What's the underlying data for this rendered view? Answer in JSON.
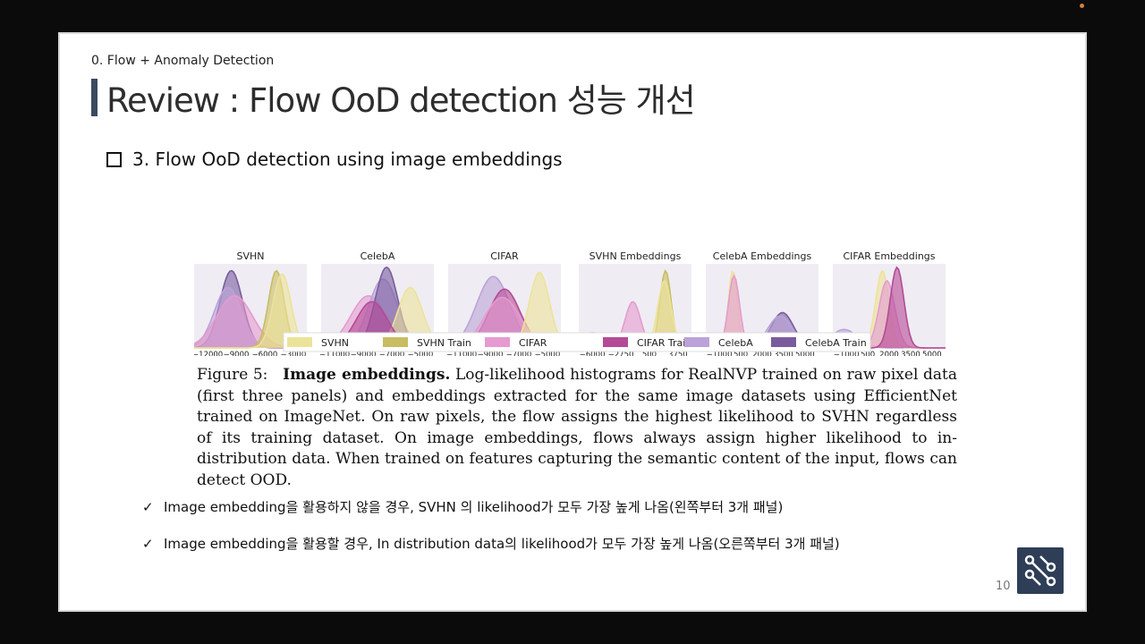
{
  "slide": {
    "section": "0. Flow + Anomaly Detection",
    "title": "Review : Flow OoD detection 성능 개선",
    "subheading": "3. Flow OoD detection using image embeddings",
    "page_number": "10"
  },
  "figure": {
    "panels": [
      {
        "title": "SVHN",
        "ticks": [
          "−12000",
          "−9000",
          "−6000",
          "−3000"
        ]
      },
      {
        "title": "CelebA",
        "ticks": [
          "−11000",
          "−9000",
          "−7000",
          "−5000"
        ]
      },
      {
        "title": "CIFAR",
        "ticks": [
          "−11000",
          "−9000",
          "−7000",
          "−5000"
        ]
      },
      {
        "title": "SVHN Embeddings",
        "ticks": [
          "−6000",
          "−2750",
          "500",
          "3750"
        ]
      },
      {
        "title": "CelebA Embeddings",
        "ticks": [
          "−1000",
          "500",
          "2000",
          "3500",
          "5000"
        ]
      },
      {
        "title": "CIFAR Embeddings",
        "ticks": [
          "−1000",
          "500",
          "2000",
          "3500",
          "5000"
        ]
      }
    ],
    "legend": [
      {
        "label": "SVHN",
        "color": "#ece39a"
      },
      {
        "label": "SVHN Train",
        "color": "#c9bd63"
      },
      {
        "label": "CIFAR",
        "color": "#e59bcf"
      },
      {
        "label": "CIFAR Train",
        "color": "#b54a96"
      },
      {
        "label": "CelebA",
        "color": "#bba3d9"
      },
      {
        "label": "CelebA Train",
        "color": "#7a5c9e"
      }
    ],
    "caption_label": "Figure 5:",
    "caption_bold": "Image embeddings.",
    "caption_text": "Log-likelihood histograms for RealNVP trained on raw pixel data (first three panels) and embeddings extracted for the same image datasets using EfficientNet trained on ImageNet. On raw pixels, the flow assigns the highest likelihood to SVHN regardless of its training dataset. On image embeddings, flows always assign higher likelihood to in-distribution data. When trained on features capturing the semantic content of the input, flows can detect OOD."
  },
  "bullets": [
    {
      "icon": "checkmark-icon",
      "text": "Image embedding을 활용하지 않을 경우, SVHN 의 likelihood가 모두 가장 높게 나옴(왼쪽부터 3개 패널)"
    },
    {
      "icon": "checkmark-icon",
      "text": "Image embedding을 활용할 경우, In distribution data의 likelihood가 모두 가장 높게 나옴(오른쪽부터 3개 패널)"
    }
  ],
  "colors": {
    "title_bar": "#3b4a5e",
    "logo_bg": "#2e3e57"
  }
}
